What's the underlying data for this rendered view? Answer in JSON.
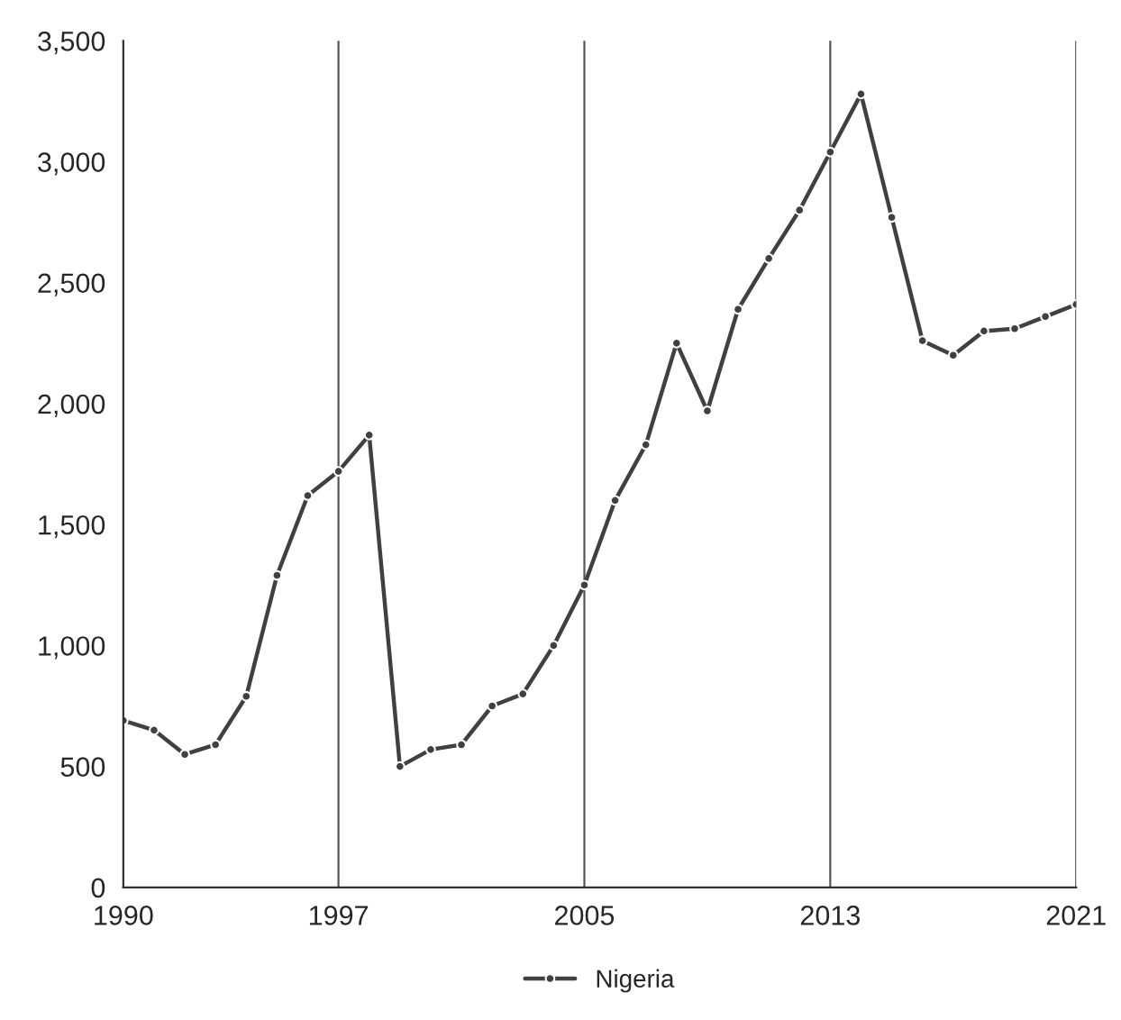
{
  "chart_data": {
    "type": "line",
    "x": [
      1990,
      1991,
      1992,
      1993,
      1994,
      1995,
      1996,
      1997,
      1998,
      1999,
      2000,
      2001,
      2002,
      2003,
      2004,
      2005,
      2006,
      2007,
      2008,
      2009,
      2010,
      2011,
      2012,
      2013,
      2014,
      2015,
      2016,
      2017,
      2018,
      2019,
      2020,
      2021
    ],
    "series": [
      {
        "name": "Nigeria",
        "color": "#404040",
        "values": [
          690,
          650,
          550,
          590,
          790,
          1290,
          1620,
          1720,
          1870,
          500,
          570,
          590,
          750,
          800,
          1000,
          1250,
          1600,
          1830,
          2250,
          1970,
          2390,
          2600,
          2800,
          3040,
          3280,
          2770,
          2260,
          2200,
          2300,
          2310,
          2360,
          2410
        ]
      }
    ],
    "xlim": [
      1990,
      2021
    ],
    "xticks": [
      1990,
      1997,
      2005,
      2013,
      2021
    ],
    "ylim": [
      0,
      3500
    ],
    "yticks": [
      0,
      {
        "value": 500,
        "label": "500"
      },
      {
        "value": 1000,
        "label": "1,000"
      },
      {
        "value": 1500,
        "label": "1,500"
      },
      {
        "value": 2000,
        "label": "2,000"
      },
      {
        "value": 2500,
        "label": "2,500"
      },
      {
        "value": 3000,
        "label": "3,000"
      },
      {
        "value": 3500,
        "label": "3,500"
      }
    ],
    "grid": "x",
    "legend": "bottom",
    "marker": "circle",
    "line_style": "solid"
  }
}
